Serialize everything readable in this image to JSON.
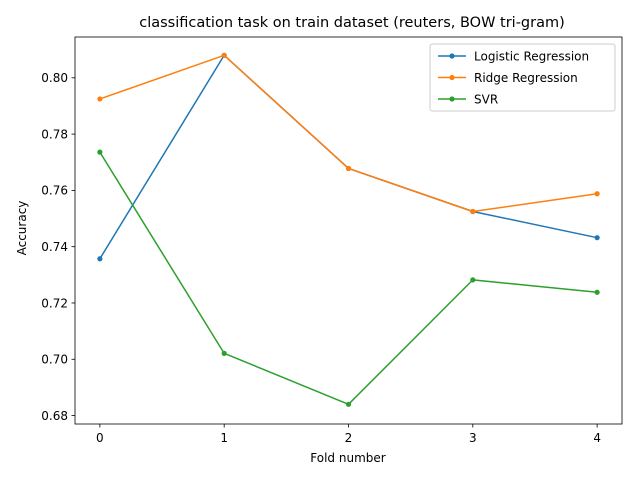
{
  "chart_data": {
    "type": "line",
    "title": "classification task on train dataset (reuters, BOW tri-gram)",
    "xlabel": "Fold number",
    "ylabel": "Accuracy",
    "x": [
      0,
      1,
      2,
      3,
      4
    ],
    "xlim": [
      -0.2,
      4.2
    ],
    "ylim": [
      0.677,
      0.8145
    ],
    "xticks": [
      "0",
      "1",
      "2",
      "3",
      "4"
    ],
    "yticks": [
      0.68,
      0.7,
      0.72,
      0.74,
      0.76,
      0.78,
      0.8
    ],
    "ytick_labels": [
      "0.68",
      "0.70",
      "0.72",
      "0.74",
      "0.76",
      "0.78",
      "0.80"
    ],
    "grid": false,
    "legend_position": "top-right",
    "series": [
      {
        "name": "Logistic Regression",
        "color": "#1f77b4",
        "values": [
          0.7357,
          0.808,
          0.7678,
          0.7525,
          0.7432
        ]
      },
      {
        "name": "Ridge Regression",
        "color": "#ff7f0e",
        "values": [
          0.7925,
          0.808,
          0.7678,
          0.7525,
          0.7588
        ]
      },
      {
        "name": "SVR",
        "color": "#2ca02c",
        "values": [
          0.7736,
          0.7021,
          0.684,
          0.7282,
          0.7238
        ]
      }
    ]
  }
}
